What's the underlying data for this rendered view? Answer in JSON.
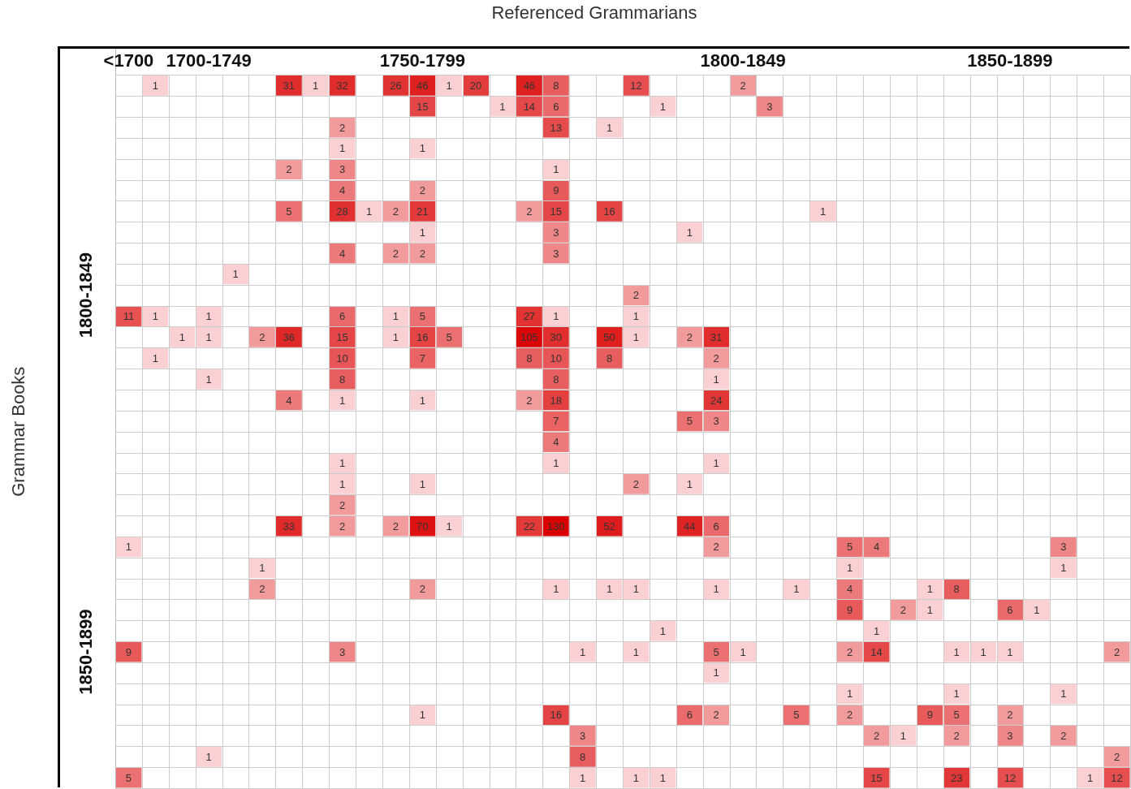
{
  "chart_data": {
    "type": "heatmap",
    "title": "Referenced Grammarians",
    "ylabel": "Grammar Books",
    "categories": [
      "<1700",
      null,
      null,
      "1700-1749",
      null,
      null,
      null,
      null,
      null,
      null,
      null,
      "1750-1799",
      null,
      null,
      null,
      null,
      null,
      null,
      null,
      null,
      null,
      null,
      null,
      "1800-1849",
      null,
      null,
      null,
      null,
      null,
      null,
      null,
      null,
      null,
      "1850-1899",
      null,
      null,
      null,
      null
    ],
    "y_categories": [
      null,
      null,
      null,
      null,
      null,
      null,
      null,
      null,
      null,
      null,
      "1800-1849",
      null,
      null,
      null,
      null,
      null,
      null,
      null,
      null,
      null,
      null,
      null,
      null,
      null,
      null,
      null,
      null,
      "1850-1899",
      null,
      null,
      null,
      null,
      null,
      null
    ],
    "grid": true,
    "data_labels": true,
    "cells": [
      [
        null,
        1,
        null,
        null,
        null,
        null,
        31,
        1,
        32,
        null,
        26,
        46,
        1,
        20,
        null,
        46,
        8,
        null,
        null,
        12,
        null,
        null,
        null,
        2,
        null,
        null,
        null,
        null,
        null,
        null,
        null,
        null,
        null,
        null,
        null,
        null,
        null,
        null
      ],
      [
        null,
        null,
        null,
        null,
        null,
        null,
        null,
        null,
        null,
        null,
        null,
        15,
        null,
        null,
        1,
        14,
        6,
        null,
        null,
        null,
        1,
        null,
        null,
        null,
        3,
        null,
        null,
        null,
        null,
        null,
        null,
        null,
        null,
        null,
        null,
        null,
        null,
        null
      ],
      [
        null,
        null,
        null,
        null,
        null,
        null,
        null,
        null,
        2,
        null,
        null,
        null,
        null,
        null,
        null,
        null,
        13,
        null,
        1,
        null,
        null,
        null,
        null,
        null,
        null,
        null,
        null,
        null,
        null,
        null,
        null,
        null,
        null,
        null,
        null,
        null,
        null,
        null
      ],
      [
        null,
        null,
        null,
        null,
        null,
        null,
        null,
        null,
        1,
        null,
        null,
        1,
        null,
        null,
        null,
        null,
        null,
        null,
        null,
        null,
        null,
        null,
        null,
        null,
        null,
        null,
        null,
        null,
        null,
        null,
        null,
        null,
        null,
        null,
        null,
        null,
        null,
        null
      ],
      [
        null,
        null,
        null,
        null,
        null,
        null,
        2,
        null,
        3,
        null,
        null,
        null,
        null,
        null,
        null,
        null,
        1,
        null,
        null,
        null,
        null,
        null,
        null,
        null,
        null,
        null,
        null,
        null,
        null,
        null,
        null,
        null,
        null,
        null,
        null,
        null,
        null,
        null
      ],
      [
        null,
        null,
        null,
        null,
        null,
        null,
        null,
        null,
        4,
        null,
        null,
        2,
        null,
        null,
        null,
        null,
        9,
        null,
        null,
        null,
        null,
        null,
        null,
        null,
        null,
        null,
        null,
        null,
        null,
        null,
        null,
        null,
        null,
        null,
        null,
        null,
        null,
        null
      ],
      [
        null,
        null,
        null,
        null,
        null,
        null,
        5,
        null,
        28,
        1,
        2,
        21,
        null,
        null,
        null,
        2,
        15,
        null,
        16,
        null,
        null,
        null,
        null,
        null,
        null,
        null,
        1,
        null,
        null,
        null,
        null,
        null,
        null,
        null,
        null,
        null,
        null,
        null
      ],
      [
        null,
        null,
        null,
        null,
        null,
        null,
        null,
        null,
        null,
        null,
        null,
        1,
        null,
        null,
        null,
        null,
        3,
        null,
        null,
        null,
        null,
        1,
        null,
        null,
        null,
        null,
        null,
        null,
        null,
        null,
        null,
        null,
        null,
        null,
        null,
        null,
        null,
        null
      ],
      [
        null,
        null,
        null,
        null,
        null,
        null,
        null,
        null,
        4,
        null,
        2,
        2,
        null,
        null,
        null,
        null,
        3,
        null,
        null,
        null,
        null,
        null,
        null,
        null,
        null,
        null,
        null,
        null,
        null,
        null,
        null,
        null,
        null,
        null,
        null,
        null,
        null,
        null
      ],
      [
        null,
        null,
        null,
        null,
        1,
        null,
        null,
        null,
        null,
        null,
        null,
        null,
        null,
        null,
        null,
        null,
        null,
        null,
        null,
        null,
        null,
        null,
        null,
        null,
        null,
        null,
        null,
        null,
        null,
        null,
        null,
        null,
        null,
        null,
        null,
        null,
        null,
        null
      ],
      [
        null,
        null,
        null,
        null,
        null,
        null,
        null,
        null,
        null,
        null,
        null,
        null,
        null,
        null,
        null,
        null,
        null,
        null,
        null,
        2,
        null,
        null,
        null,
        null,
        null,
        null,
        null,
        null,
        null,
        null,
        null,
        null,
        null,
        null,
        null,
        null,
        null,
        null
      ],
      [
        11,
        1,
        null,
        1,
        null,
        null,
        null,
        null,
        6,
        null,
        1,
        5,
        null,
        null,
        null,
        27,
        1,
        null,
        null,
        1,
        null,
        null,
        null,
        null,
        null,
        null,
        null,
        null,
        null,
        null,
        null,
        null,
        null,
        null,
        null,
        null,
        null,
        null
      ],
      [
        null,
        null,
        1,
        1,
        null,
        2,
        36,
        null,
        15,
        null,
        1,
        16,
        5,
        null,
        null,
        105,
        30,
        null,
        50,
        1,
        null,
        2,
        31,
        null,
        null,
        null,
        null,
        null,
        null,
        null,
        null,
        null,
        null,
        null,
        null,
        null,
        null,
        null
      ],
      [
        null,
        1,
        null,
        null,
        null,
        null,
        null,
        null,
        10,
        null,
        null,
        7,
        null,
        null,
        null,
        8,
        10,
        null,
        8,
        null,
        null,
        null,
        2,
        null,
        null,
        null,
        null,
        null,
        null,
        null,
        null,
        null,
        null,
        null,
        null,
        null,
        null,
        null
      ],
      [
        null,
        null,
        null,
        1,
        null,
        null,
        null,
        null,
        8,
        null,
        null,
        null,
        null,
        null,
        null,
        null,
        8,
        null,
        null,
        null,
        null,
        null,
        1,
        null,
        null,
        null,
        null,
        null,
        null,
        null,
        null,
        null,
        null,
        null,
        null,
        null,
        null,
        null
      ],
      [
        null,
        null,
        null,
        null,
        null,
        null,
        4,
        null,
        1,
        null,
        null,
        1,
        null,
        null,
        null,
        2,
        18,
        null,
        null,
        null,
        null,
        null,
        24,
        null,
        null,
        null,
        null,
        null,
        null,
        null,
        null,
        null,
        null,
        null,
        null,
        null,
        null,
        null
      ],
      [
        null,
        null,
        null,
        null,
        null,
        null,
        null,
        null,
        null,
        null,
        null,
        null,
        null,
        null,
        null,
        null,
        7,
        null,
        null,
        null,
        null,
        5,
        3,
        null,
        null,
        null,
        null,
        null,
        null,
        null,
        null,
        null,
        null,
        null,
        null,
        null,
        null,
        null
      ],
      [
        null,
        null,
        null,
        null,
        null,
        null,
        null,
        null,
        null,
        null,
        null,
        null,
        null,
        null,
        null,
        null,
        4,
        null,
        null,
        null,
        null,
        null,
        null,
        null,
        null,
        null,
        null,
        null,
        null,
        null,
        null,
        null,
        null,
        null,
        null,
        null,
        null,
        null
      ],
      [
        null,
        null,
        null,
        null,
        null,
        null,
        null,
        null,
        1,
        null,
        null,
        null,
        null,
        null,
        null,
        null,
        1,
        null,
        null,
        null,
        null,
        null,
        1,
        null,
        null,
        null,
        null,
        null,
        null,
        null,
        null,
        null,
        null,
        null,
        null,
        null,
        null,
        null
      ],
      [
        null,
        null,
        null,
        null,
        null,
        null,
        null,
        null,
        1,
        null,
        null,
        1,
        null,
        null,
        null,
        null,
        null,
        null,
        null,
        2,
        null,
        1,
        null,
        null,
        null,
        null,
        null,
        null,
        null,
        null,
        null,
        null,
        null,
        null,
        null,
        null,
        null,
        null
      ],
      [
        null,
        null,
        null,
        null,
        null,
        null,
        null,
        null,
        2,
        null,
        null,
        null,
        null,
        null,
        null,
        null,
        null,
        null,
        null,
        null,
        null,
        null,
        null,
        null,
        null,
        null,
        null,
        null,
        null,
        null,
        null,
        null,
        null,
        null,
        null,
        null,
        null,
        null
      ],
      [
        null,
        null,
        null,
        null,
        null,
        null,
        33,
        null,
        2,
        null,
        2,
        70,
        1,
        null,
        null,
        22,
        130,
        null,
        52,
        null,
        null,
        44,
        6,
        null,
        null,
        null,
        null,
        null,
        null,
        null,
        null,
        null,
        null,
        null,
        null,
        null,
        null,
        null
      ],
      [
        1,
        null,
        null,
        null,
        null,
        null,
        null,
        null,
        null,
        null,
        null,
        null,
        null,
        null,
        null,
        null,
        null,
        null,
        null,
        null,
        null,
        null,
        2,
        null,
        null,
        null,
        null,
        5,
        4,
        null,
        null,
        null,
        null,
        null,
        null,
        3,
        null,
        null
      ],
      [
        null,
        null,
        null,
        null,
        null,
        1,
        null,
        null,
        null,
        null,
        null,
        null,
        null,
        null,
        null,
        null,
        null,
        null,
        null,
        null,
        null,
        null,
        null,
        null,
        null,
        null,
        null,
        1,
        null,
        null,
        null,
        null,
        null,
        null,
        null,
        1,
        null,
        null
      ],
      [
        null,
        null,
        null,
        null,
        null,
        2,
        null,
        null,
        null,
        null,
        null,
        2,
        null,
        null,
        null,
        null,
        1,
        null,
        1,
        1,
        null,
        null,
        1,
        null,
        null,
        1,
        null,
        4,
        null,
        null,
        1,
        8,
        null,
        null,
        null,
        null,
        null,
        null
      ],
      [
        null,
        null,
        null,
        null,
        null,
        null,
        null,
        null,
        null,
        null,
        null,
        null,
        null,
        null,
        null,
        null,
        null,
        null,
        null,
        null,
        null,
        null,
        null,
        null,
        null,
        null,
        null,
        9,
        null,
        2,
        1,
        null,
        null,
        6,
        1,
        null,
        null,
        null
      ],
      [
        null,
        null,
        null,
        null,
        null,
        null,
        null,
        null,
        null,
        null,
        null,
        null,
        null,
        null,
        null,
        null,
        null,
        null,
        null,
        null,
        1,
        null,
        null,
        null,
        null,
        null,
        null,
        null,
        1,
        null,
        null,
        null,
        null,
        null,
        null,
        null,
        null,
        null
      ],
      [
        9,
        null,
        null,
        null,
        null,
        null,
        null,
        null,
        3,
        null,
        null,
        null,
        null,
        null,
        null,
        null,
        null,
        1,
        null,
        1,
        null,
        null,
        5,
        1,
        null,
        null,
        null,
        2,
        14,
        null,
        null,
        1,
        1,
        1,
        null,
        null,
        null,
        2
      ],
      [
        null,
        null,
        null,
        null,
        null,
        null,
        null,
        null,
        null,
        null,
        null,
        null,
        null,
        null,
        null,
        null,
        null,
        null,
        null,
        null,
        null,
        null,
        1,
        null,
        null,
        null,
        null,
        null,
        null,
        null,
        null,
        null,
        null,
        null,
        null,
        null,
        null,
        null
      ],
      [
        null,
        null,
        null,
        null,
        null,
        null,
        null,
        null,
        null,
        null,
        null,
        null,
        null,
        null,
        null,
        null,
        null,
        null,
        null,
        null,
        null,
        null,
        null,
        null,
        null,
        null,
        null,
        1,
        null,
        null,
        null,
        1,
        null,
        null,
        null,
        1,
        null,
        null
      ],
      [
        null,
        null,
        null,
        null,
        null,
        null,
        null,
        null,
        null,
        null,
        null,
        1,
        null,
        null,
        null,
        null,
        16,
        null,
        null,
        null,
        null,
        6,
        2,
        null,
        null,
        5,
        null,
        2,
        null,
        null,
        9,
        5,
        null,
        2,
        null,
        null,
        null,
        null
      ],
      [
        null,
        null,
        null,
        null,
        null,
        null,
        null,
        null,
        null,
        null,
        null,
        null,
        null,
        null,
        null,
        null,
        null,
        3,
        null,
        null,
        null,
        null,
        null,
        null,
        null,
        null,
        null,
        null,
        2,
        1,
        null,
        2,
        null,
        3,
        null,
        2,
        null,
        null
      ],
      [
        null,
        null,
        null,
        1,
        null,
        null,
        null,
        null,
        null,
        null,
        null,
        null,
        null,
        null,
        null,
        null,
        null,
        8,
        null,
        null,
        null,
        null,
        null,
        null,
        null,
        null,
        null,
        null,
        null,
        null,
        null,
        null,
        null,
        null,
        null,
        null,
        null,
        2
      ],
      [
        5,
        null,
        null,
        null,
        null,
        null,
        null,
        null,
        null,
        null,
        null,
        null,
        null,
        null,
        null,
        null,
        null,
        1,
        null,
        1,
        1,
        null,
        null,
        null,
        null,
        null,
        null,
        null,
        15,
        null,
        null,
        23,
        null,
        12,
        null,
        null,
        1,
        12
      ]
    ]
  }
}
